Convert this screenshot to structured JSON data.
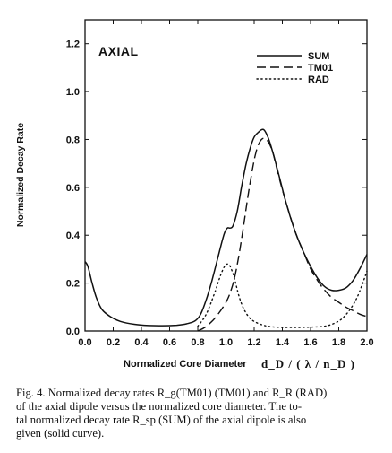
{
  "chart_data": {
    "type": "line",
    "panel_label": "AXIAL",
    "ylabel": "Normalized Decay Rate",
    "xlabel": "Normalized Core Diameter",
    "xunit": "d_D / ( λ / n_D )",
    "xlim": [
      0.0,
      2.0
    ],
    "ylim": [
      0.0,
      1.3
    ],
    "x_ticks": [
      "0.0",
      "0.2",
      "0.4",
      "0.6",
      "0.8",
      "1.0",
      "1.2",
      "1.4",
      "1.6",
      "1.8",
      "2.0"
    ],
    "y_ticks": [
      "0.0",
      "0.2",
      "0.4",
      "0.6",
      "0.8",
      "1.0",
      "1.2"
    ],
    "legend": {
      "placement": "top-right",
      "entries": [
        "SUM",
        "TM01",
        "RAD"
      ]
    },
    "series": [
      {
        "name": "SUM",
        "style": "solid",
        "x": [
          0.0,
          0.02,
          0.05,
          0.08,
          0.12,
          0.18,
          0.25,
          0.35,
          0.45,
          0.55,
          0.65,
          0.72,
          0.78,
          0.82,
          0.86,
          0.9,
          0.94,
          0.97,
          0.99,
          1.01,
          1.03,
          1.05,
          1.08,
          1.11,
          1.14,
          1.17,
          1.2,
          1.23,
          1.25,
          1.27,
          1.29,
          1.31,
          1.34,
          1.38,
          1.42,
          1.46,
          1.5,
          1.55,
          1.6,
          1.65,
          1.7,
          1.75,
          1.8,
          1.85,
          1.9,
          1.95,
          2.0
        ],
        "y": [
          0.29,
          0.27,
          0.2,
          0.14,
          0.09,
          0.06,
          0.04,
          0.028,
          0.023,
          0.022,
          0.024,
          0.03,
          0.042,
          0.07,
          0.13,
          0.21,
          0.3,
          0.37,
          0.41,
          0.43,
          0.43,
          0.44,
          0.5,
          0.6,
          0.69,
          0.76,
          0.81,
          0.83,
          0.84,
          0.84,
          0.82,
          0.79,
          0.73,
          0.64,
          0.55,
          0.47,
          0.4,
          0.33,
          0.27,
          0.22,
          0.185,
          0.17,
          0.17,
          0.18,
          0.21,
          0.26,
          0.32
        ]
      },
      {
        "name": "TM01",
        "style": "dashed",
        "x": [
          0.8,
          0.85,
          0.9,
          0.95,
          1.0,
          1.03,
          1.06,
          1.09,
          1.12,
          1.15,
          1.18,
          1.21,
          1.24,
          1.27,
          1.3,
          1.33,
          1.36,
          1.4,
          1.45,
          1.5,
          1.55,
          1.6,
          1.65,
          1.7,
          1.75,
          1.8,
          1.85,
          1.9,
          1.95,
          2.0
        ],
        "y": [
          0.0,
          0.015,
          0.04,
          0.075,
          0.12,
          0.16,
          0.22,
          0.31,
          0.42,
          0.54,
          0.65,
          0.74,
          0.79,
          0.805,
          0.79,
          0.75,
          0.68,
          0.59,
          0.49,
          0.4,
          0.33,
          0.26,
          0.21,
          0.17,
          0.14,
          0.12,
          0.1,
          0.085,
          0.07,
          0.06
        ]
      },
      {
        "name": "RAD",
        "style": "dotted",
        "x": [
          0.8,
          0.86,
          0.92,
          0.96,
          0.99,
          1.01,
          1.03,
          1.06,
          1.09,
          1.12,
          1.16,
          1.2,
          1.26,
          1.32,
          1.4,
          1.5,
          1.6,
          1.7,
          1.76,
          1.82,
          1.88,
          1.93,
          1.97,
          2.0
        ],
        "y": [
          0.02,
          0.07,
          0.16,
          0.23,
          0.27,
          0.28,
          0.27,
          0.22,
          0.15,
          0.1,
          0.06,
          0.04,
          0.025,
          0.018,
          0.015,
          0.015,
          0.016,
          0.02,
          0.03,
          0.05,
          0.09,
          0.14,
          0.2,
          0.25
        ]
      }
    ]
  },
  "caption": {
    "line1": "Fig. 4.   Normalized decay rates R_g(TM01) (TM01) and R_R (RAD)",
    "line2": "of the axial dipole versus the normalized core diameter.   The to-",
    "line3": "tal normalized decay rate R_sp (SUM) of the axial dipole is also",
    "line4": "given (solid curve)."
  }
}
